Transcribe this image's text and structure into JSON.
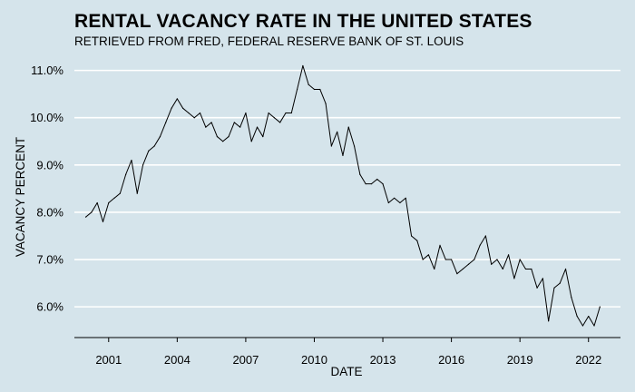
{
  "title": "RENTAL VACANCY RATE IN THE UNITED STATES",
  "subtitle": "RETRIEVED FROM FRED, FEDERAL RESERVE BANK OF ST. LOUIS",
  "chart_data": {
    "type": "line",
    "title": "RENTAL VACANCY RATE IN THE UNITED STATES",
    "subtitle": "RETRIEVED FROM FRED, FEDERAL RESERVE BANK OF ST. LOUIS",
    "xlabel": "DATE",
    "ylabel": "VACANCY PERCENT",
    "xlim": [
      1999.5,
      2023.4
    ],
    "ylim": [
      5.35,
      11.3
    ],
    "x_ticks": [
      2001,
      2004,
      2007,
      2010,
      2013,
      2016,
      2019,
      2022
    ],
    "x_tick_labels": [
      "2001",
      "2004",
      "2007",
      "2010",
      "2013",
      "2016",
      "2019",
      "2022"
    ],
    "y_ticks": [
      6,
      7,
      8,
      9,
      10,
      11
    ],
    "y_tick_labels": [
      "6.0%",
      "7.0%",
      "8.0%",
      "9.0%",
      "10.0%",
      "11.0%"
    ],
    "grid": "horizontal",
    "line_color": "#000000",
    "background_color": "#d5e4eb",
    "grid_color": "#ffffff",
    "series": [
      {
        "x": [
          2000.0,
          2000.25,
          2000.5,
          2000.75,
          2001.0,
          2001.25,
          2001.5,
          2001.75,
          2002.0,
          2002.25,
          2002.5,
          2002.75,
          2003.0,
          2003.25,
          2003.5,
          2003.75,
          2004.0,
          2004.25,
          2004.5,
          2004.75,
          2005.0,
          2005.25,
          2005.5,
          2005.75,
          2006.0,
          2006.25,
          2006.5,
          2006.75,
          2007.0,
          2007.25,
          2007.5,
          2007.75,
          2008.0,
          2008.25,
          2008.5,
          2008.75,
          2009.0,
          2009.25,
          2009.5,
          2009.75,
          2010.0,
          2010.25,
          2010.5,
          2010.75,
          2011.0,
          2011.25,
          2011.5,
          2011.75,
          2012.0,
          2012.25,
          2012.5,
          2012.75,
          2013.0,
          2013.25,
          2013.5,
          2013.75,
          2014.0,
          2014.25,
          2014.5,
          2014.75,
          2015.0,
          2015.25,
          2015.5,
          2015.75,
          2016.0,
          2016.25,
          2016.5,
          2016.75,
          2017.0,
          2017.25,
          2017.5,
          2017.75,
          2018.0,
          2018.25,
          2018.5,
          2018.75,
          2019.0,
          2019.25,
          2019.5,
          2019.75,
          2020.0,
          2020.25,
          2020.5,
          2020.75,
          2021.0,
          2021.25,
          2021.5,
          2021.75,
          2022.0,
          2022.25,
          2022.5
        ],
        "values": [
          7.9,
          8.0,
          8.2,
          7.8,
          8.2,
          8.3,
          8.4,
          8.8,
          9.1,
          8.4,
          9.0,
          9.3,
          9.4,
          9.6,
          9.9,
          10.2,
          10.4,
          10.2,
          10.1,
          10.0,
          10.1,
          9.8,
          9.9,
          9.6,
          9.5,
          9.6,
          9.9,
          9.8,
          10.1,
          9.5,
          9.8,
          9.6,
          10.1,
          10.0,
          9.9,
          10.1,
          10.1,
          10.6,
          11.1,
          10.7,
          10.6,
          10.6,
          10.3,
          9.4,
          9.7,
          9.2,
          9.8,
          9.4,
          8.8,
          8.6,
          8.6,
          8.7,
          8.6,
          8.2,
          8.3,
          8.2,
          8.3,
          7.5,
          7.4,
          7.0,
          7.1,
          6.8,
          7.3,
          7.0,
          7.0,
          6.7,
          6.8,
          6.9,
          7.0,
          7.3,
          7.5,
          6.9,
          7.0,
          6.8,
          7.1,
          6.6,
          7.0,
          6.8,
          6.8,
          6.4,
          6.6,
          5.7,
          6.4,
          6.5,
          6.8,
          6.2,
          5.8,
          5.6,
          5.8,
          5.6,
          6.0
        ]
      }
    ]
  }
}
